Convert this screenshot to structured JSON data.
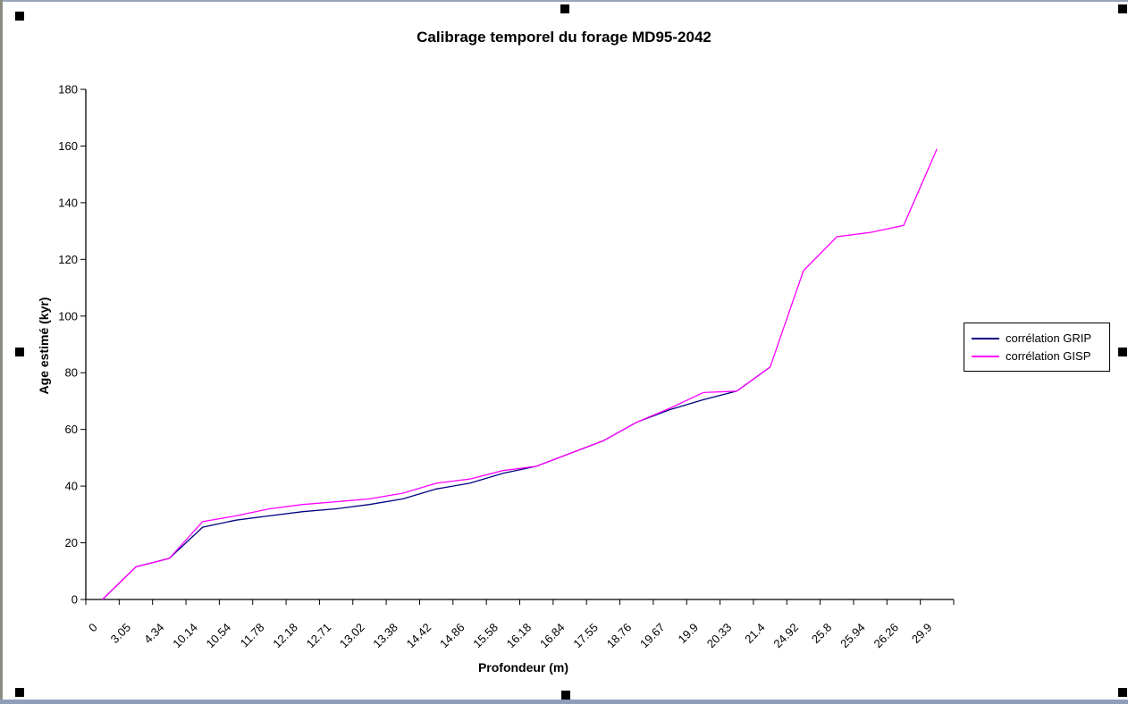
{
  "chart_data": {
    "type": "line",
    "title": "Calibrage temporel du forage MD95-2042",
    "xlabel": "Profondeur (m)",
    "ylabel": "Age estimé (kyr)",
    "ylim": [
      0,
      180
    ],
    "ytick_step": 20,
    "grid": false,
    "legend_position": "right",
    "x_label_rotation": -45,
    "categories": [
      "0",
      "3.05",
      "4.34",
      "10.14",
      "10.54",
      "11.78",
      "12.18",
      "12.71",
      "13.02",
      "13.38",
      "14.42",
      "14.86",
      "15.58",
      "16.18",
      "16.84",
      "17.55",
      "18.76",
      "19.67",
      "19.9",
      "20.33",
      "21.4",
      "24.92",
      "25.8",
      "25.94",
      "26.26",
      "29.9"
    ],
    "series": [
      {
        "name": "corrélation GRIP",
        "color": "#000080",
        "values": [
          0,
          11.5,
          14.5,
          25.5,
          28,
          29.5,
          31,
          32,
          33.5,
          35.5,
          39,
          41,
          44.5,
          47,
          51.5,
          56,
          62.5,
          67,
          70.5,
          73.5,
          82
        ]
      },
      {
        "name": "corrélation GISP",
        "color": "#FF00FF",
        "values": [
          0,
          11.5,
          14.5,
          27.5,
          29.5,
          32,
          33.5,
          34.5,
          35.5,
          37.5,
          41,
          42.5,
          45.5,
          47,
          51.5,
          56,
          62.5,
          67.5,
          73,
          73.5,
          82,
          116,
          128,
          129.5,
          132,
          159
        ]
      }
    ]
  }
}
